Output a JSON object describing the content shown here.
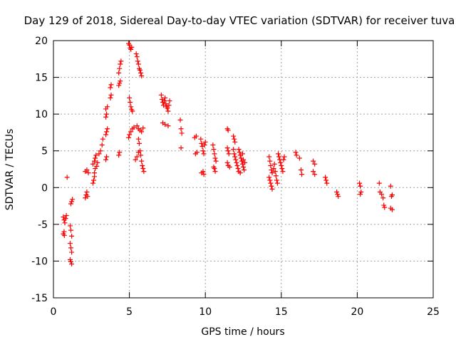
{
  "chart_data": {
    "type": "scatter",
    "title": "Day 129 of 2018, Sidereal Day-to-day VTEC variation (SDTVAR) for receiver tuva",
    "xlabel": "GPS time / hours",
    "ylabel": "SDTVAR / TECUs",
    "xlim": [
      0,
      25
    ],
    "ylim": [
      -15,
      20
    ],
    "xticks": [
      0,
      5,
      10,
      15,
      20,
      25
    ],
    "yticks": [
      -15,
      -10,
      -5,
      0,
      5,
      10,
      15,
      20
    ],
    "grid": true,
    "marker": "plus",
    "color": "#ff0000",
    "series": [
      {
        "name": "SDTVAR",
        "points": [
          [
            0.65,
            -6.3
          ],
          [
            0.7,
            -6.0
          ],
          [
            0.72,
            -6.5
          ],
          [
            0.65,
            -4.0
          ],
          [
            0.7,
            -4.4
          ],
          [
            0.75,
            -4.8
          ],
          [
            0.8,
            -4.2
          ],
          [
            0.85,
            -3.8
          ],
          [
            0.9,
            1.4
          ],
          [
            1.1,
            -5.2
          ],
          [
            1.15,
            -5.8
          ],
          [
            1.2,
            -6.6
          ],
          [
            1.1,
            -7.6
          ],
          [
            1.15,
            -8.2
          ],
          [
            1.2,
            -8.8
          ],
          [
            1.1,
            -9.8
          ],
          [
            1.15,
            -10.1
          ],
          [
            1.2,
            -10.4
          ],
          [
            1.15,
            -2.2
          ],
          [
            1.2,
            -1.9
          ],
          [
            1.25,
            -1.6
          ],
          [
            2.1,
            -1.4
          ],
          [
            2.15,
            -1.0
          ],
          [
            2.2,
            -0.6
          ],
          [
            2.25,
            -1.2
          ],
          [
            2.1,
            2.2
          ],
          [
            2.2,
            2.4
          ],
          [
            2.3,
            2.0
          ],
          [
            2.6,
            0.6
          ],
          [
            2.65,
            1.0
          ],
          [
            2.7,
            1.5
          ],
          [
            2.7,
            2.0
          ],
          [
            2.75,
            2.6
          ],
          [
            2.6,
            3.2
          ],
          [
            2.7,
            3.6
          ],
          [
            2.75,
            4.0
          ],
          [
            2.8,
            4.4
          ],
          [
            2.85,
            2.9
          ],
          [
            2.9,
            3.4
          ],
          [
            3.0,
            4.6
          ],
          [
            3.1,
            5.0
          ],
          [
            3.2,
            5.8
          ],
          [
            3.25,
            6.6
          ],
          [
            3.45,
            3.8
          ],
          [
            3.5,
            4.2
          ],
          [
            3.45,
            7.2
          ],
          [
            3.5,
            7.6
          ],
          [
            3.55,
            8.0
          ],
          [
            3.45,
            9.6
          ],
          [
            3.5,
            10.0
          ],
          [
            3.45,
            10.7
          ],
          [
            3.55,
            11.0
          ],
          [
            3.75,
            12.2
          ],
          [
            3.8,
            12.6
          ],
          [
            3.75,
            13.6
          ],
          [
            3.8,
            14.0
          ],
          [
            4.3,
            13.9
          ],
          [
            4.35,
            14.2
          ],
          [
            4.4,
            14.5
          ],
          [
            4.3,
            15.6
          ],
          [
            4.35,
            16.2
          ],
          [
            4.4,
            16.8
          ],
          [
            4.45,
            17.2
          ],
          [
            4.3,
            4.4
          ],
          [
            4.35,
            4.8
          ],
          [
            4.95,
            19.6
          ],
          [
            5.0,
            19.4
          ],
          [
            5.05,
            19.0
          ],
          [
            5.1,
            18.8
          ],
          [
            5.15,
            19.1
          ],
          [
            5.0,
            12.2
          ],
          [
            5.05,
            11.6
          ],
          [
            5.1,
            11.0
          ],
          [
            5.15,
            10.6
          ],
          [
            5.2,
            10.4
          ],
          [
            4.95,
            6.8
          ],
          [
            5.0,
            7.2
          ],
          [
            5.1,
            7.6
          ],
          [
            5.2,
            8.0
          ],
          [
            5.3,
            8.2
          ],
          [
            5.45,
            18.2
          ],
          [
            5.5,
            17.8
          ],
          [
            5.55,
            17.2
          ],
          [
            5.6,
            16.8
          ],
          [
            5.65,
            16.2
          ],
          [
            5.7,
            16.0
          ],
          [
            5.75,
            15.6
          ],
          [
            5.8,
            15.2
          ],
          [
            5.5,
            8.4
          ],
          [
            5.6,
            8.0
          ],
          [
            5.7,
            7.8
          ],
          [
            5.8,
            7.6
          ],
          [
            5.9,
            8.1
          ],
          [
            5.6,
            6.6
          ],
          [
            5.65,
            6.0
          ],
          [
            5.4,
            3.8
          ],
          [
            5.5,
            4.2
          ],
          [
            5.6,
            4.8
          ],
          [
            5.7,
            5.0
          ],
          [
            5.75,
            4.4
          ],
          [
            5.8,
            3.6
          ],
          [
            5.85,
            3.0
          ],
          [
            5.9,
            2.6
          ],
          [
            5.95,
            2.2
          ],
          [
            7.1,
            12.6
          ],
          [
            7.15,
            12.0
          ],
          [
            7.2,
            11.6
          ],
          [
            7.25,
            11.2
          ],
          [
            7.3,
            11.8
          ],
          [
            7.35,
            12.2
          ],
          [
            7.4,
            11.4
          ],
          [
            7.45,
            11.0
          ],
          [
            7.5,
            10.8
          ],
          [
            7.55,
            10.4
          ],
          [
            7.6,
            11.2
          ],
          [
            7.65,
            11.8
          ],
          [
            7.2,
            8.8
          ],
          [
            7.35,
            8.6
          ],
          [
            7.55,
            8.4
          ],
          [
            8.35,
            9.2
          ],
          [
            8.4,
            8.0
          ],
          [
            8.45,
            7.4
          ],
          [
            8.4,
            5.4
          ],
          [
            9.3,
            6.8
          ],
          [
            9.4,
            7.0
          ],
          [
            9.35,
            4.6
          ],
          [
            9.45,
            4.8
          ],
          [
            9.7,
            6.6
          ],
          [
            9.75,
            6.0
          ],
          [
            9.8,
            5.6
          ],
          [
            9.85,
            5.0
          ],
          [
            9.9,
            4.6
          ],
          [
            9.95,
            5.8
          ],
          [
            10.0,
            6.2
          ],
          [
            9.75,
            2.0
          ],
          [
            9.85,
            2.2
          ],
          [
            9.9,
            1.8
          ],
          [
            10.5,
            5.8
          ],
          [
            10.55,
            5.2
          ],
          [
            10.6,
            4.6
          ],
          [
            10.65,
            4.0
          ],
          [
            10.7,
            3.6
          ],
          [
            10.55,
            2.8
          ],
          [
            10.6,
            2.6
          ],
          [
            10.65,
            2.2
          ],
          [
            11.45,
            8.0
          ],
          [
            11.5,
            7.8
          ],
          [
            11.45,
            5.4
          ],
          [
            11.5,
            5.0
          ],
          [
            11.55,
            4.6
          ],
          [
            11.45,
            3.4
          ],
          [
            11.5,
            3.0
          ],
          [
            11.6,
            2.8
          ],
          [
            11.85,
            7.0
          ],
          [
            11.9,
            6.6
          ],
          [
            11.95,
            6.2
          ],
          [
            11.85,
            5.2
          ],
          [
            11.9,
            4.6
          ],
          [
            11.95,
            4.2
          ],
          [
            12.0,
            3.8
          ],
          [
            12.05,
            3.4
          ],
          [
            12.1,
            3.0
          ],
          [
            12.15,
            2.6
          ],
          [
            12.2,
            5.2
          ],
          [
            12.25,
            4.8
          ],
          [
            12.3,
            4.4
          ],
          [
            12.35,
            4.0
          ],
          [
            12.4,
            3.6
          ],
          [
            12.45,
            3.2
          ],
          [
            12.5,
            2.8
          ],
          [
            12.55,
            2.4
          ],
          [
            12.2,
            2.2
          ],
          [
            12.3,
            2.0
          ],
          [
            12.45,
            4.6
          ],
          [
            12.5,
            3.8
          ],
          [
            12.6,
            3.4
          ],
          [
            14.2,
            4.2
          ],
          [
            14.25,
            3.6
          ],
          [
            14.3,
            3.0
          ],
          [
            14.35,
            2.4
          ],
          [
            14.4,
            2.0
          ],
          [
            14.2,
            1.4
          ],
          [
            14.25,
            1.0
          ],
          [
            14.3,
            0.6
          ],
          [
            14.35,
            0.2
          ],
          [
            14.4,
            -0.2
          ],
          [
            14.5,
            2.6
          ],
          [
            14.55,
            3.2
          ],
          [
            14.6,
            2.2
          ],
          [
            14.65,
            1.6
          ],
          [
            14.7,
            1.0
          ],
          [
            14.75,
            0.6
          ],
          [
            14.8,
            4.6
          ],
          [
            14.85,
            4.2
          ],
          [
            14.9,
            3.8
          ],
          [
            14.95,
            3.4
          ],
          [
            15.0,
            3.0
          ],
          [
            15.05,
            2.6
          ],
          [
            15.1,
            2.2
          ],
          [
            15.15,
            3.8
          ],
          [
            15.2,
            4.2
          ],
          [
            15.95,
            4.8
          ],
          [
            16.0,
            4.4
          ],
          [
            16.2,
            4.0
          ],
          [
            16.3,
            2.4
          ],
          [
            16.35,
            1.8
          ],
          [
            17.1,
            3.6
          ],
          [
            17.2,
            3.2
          ],
          [
            17.1,
            2.2
          ],
          [
            17.2,
            1.8
          ],
          [
            17.9,
            1.4
          ],
          [
            17.95,
            1.0
          ],
          [
            18.0,
            0.6
          ],
          [
            18.65,
            -0.6
          ],
          [
            18.7,
            -0.9
          ],
          [
            18.75,
            -1.2
          ],
          [
            20.15,
            0.6
          ],
          [
            20.2,
            0.2
          ],
          [
            20.25,
            -0.6
          ],
          [
            20.2,
            -0.9
          ],
          [
            21.45,
            0.6
          ],
          [
            21.5,
            -0.6
          ],
          [
            21.6,
            -0.9
          ],
          [
            21.7,
            -1.4
          ],
          [
            21.75,
            -2.4
          ],
          [
            21.8,
            -2.7
          ],
          [
            22.2,
            0.2
          ],
          [
            22.25,
            -1.2
          ],
          [
            22.3,
            -1.0
          ],
          [
            22.2,
            -2.8
          ],
          [
            22.3,
            -3.0
          ]
        ]
      }
    ]
  }
}
